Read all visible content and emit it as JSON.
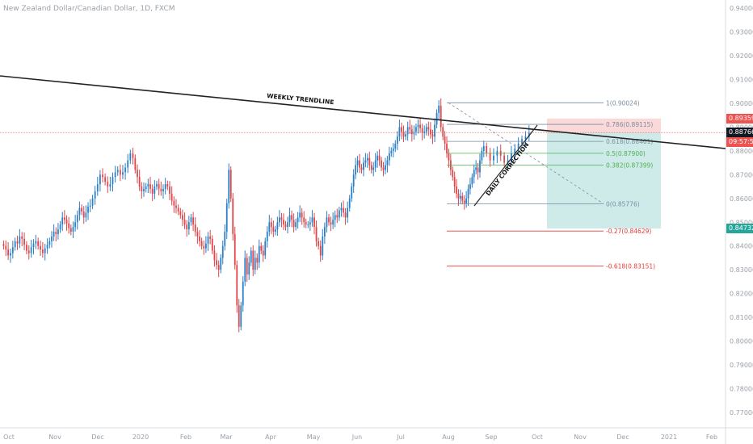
{
  "header": {
    "title": "New Zealand Dollar/Canadian Dollar, 1D, FXCM"
  },
  "price_tags": {
    "stop": "0.89359",
    "current": "0.88766",
    "countdown": "09:57:57",
    "target": "0.84732"
  },
  "colors": {
    "bull_candle": "#2a7fc8",
    "bear_candle": "#e0464a",
    "trendline": "#222222",
    "stop_tag": "#ef5350",
    "current_tag": "#131722",
    "target_tag": "#26a69a",
    "fib_upper": "#7a8da0",
    "fib_mid": "#4caf50",
    "fib_ext": "#e53935"
  },
  "annotations": {
    "weekly_trendline": "WEEKLY TRENDLINE",
    "daily_correction": "DAILY CORRECTION"
  },
  "fib_levels": [
    {
      "label": "1(0.90024)",
      "value": 0.90024
    },
    {
      "label": "0.786(0.89115)",
      "value": 0.89115
    },
    {
      "label": "0.618(0.88401)",
      "value": 0.88401
    },
    {
      "label": "0.5(0.87900)",
      "value": 0.879
    },
    {
      "label": "0.382(0.87399)",
      "value": 0.87399
    },
    {
      "label": "0(0.85776)",
      "value": 0.85776
    },
    {
      "label": "-0.27(0.84629)",
      "value": 0.84629
    },
    {
      "label": "-0.618(0.83151)",
      "value": 0.83151
    }
  ],
  "chart_data": {
    "type": "candlestick",
    "title": "New Zealand Dollar/Canadian Dollar, 1D, FXCM",
    "x_ticks": [
      "Oct",
      "Nov",
      "Dec",
      "2020",
      "Feb",
      "Mar",
      "Apr",
      "May",
      "Jun",
      "Jul",
      "Aug",
      "Sep",
      "Oct",
      "Nov",
      "Dec",
      "2021",
      "Feb"
    ],
    "y_ticks": [
      "0.94000",
      "0.93000",
      "0.92000",
      "0.91000",
      "0.90000",
      "0.89000",
      "0.88000",
      "0.87000",
      "0.86000",
      "0.85000",
      "0.84000",
      "0.83000",
      "0.82000",
      "0.81000",
      "0.80000",
      "0.79000",
      "0.78000",
      "0.77000"
    ],
    "ylim": [
      0.765,
      0.944
    ],
    "close_series": [
      {
        "month": "Oct",
        "values": [
          0.84,
          0.8385,
          0.836,
          0.837,
          0.8395,
          0.842,
          0.841,
          0.844,
          0.843,
          0.8405,
          0.838,
          0.837,
          0.8395,
          0.841,
          0.842,
          0.84,
          0.8385,
          0.837,
          0.839,
          0.8405
        ]
      },
      {
        "month": "Nov",
        "values": [
          0.842,
          0.844,
          0.846,
          0.845,
          0.847,
          0.849,
          0.852,
          0.851,
          0.8495,
          0.8475,
          0.846,
          0.848,
          0.85,
          0.853,
          0.856,
          0.8545,
          0.852,
          0.854,
          0.8565,
          0.857
        ]
      },
      {
        "month": "Dec",
        "values": [
          0.86,
          0.863,
          0.866,
          0.87,
          0.869,
          0.867,
          0.865,
          0.866,
          0.869,
          0.871,
          0.872,
          0.87,
          0.871,
          0.873,
          0.876,
          0.879,
          0.877
        ]
      },
      {
        "month": "2020",
        "values": [
          0.872,
          0.869,
          0.865,
          0.863,
          0.864,
          0.865,
          0.866,
          0.864,
          0.862,
          0.865,
          0.866,
          0.864,
          0.863,
          0.864,
          0.866,
          0.865,
          0.862,
          0.859,
          0.857,
          0.856,
          0.8545
        ]
      },
      {
        "month": "Feb",
        "values": [
          0.853,
          0.851,
          0.849,
          0.847,
          0.85,
          0.852,
          0.849,
          0.846,
          0.844,
          0.842,
          0.84,
          0.839,
          0.841,
          0.844,
          0.843,
          0.838,
          0.834,
          0.832,
          0.83
        ]
      },
      {
        "month": "Mar",
        "values": [
          0.835,
          0.84,
          0.846,
          0.858,
          0.872,
          0.86,
          0.845,
          0.832,
          0.815,
          0.806,
          0.815,
          0.825,
          0.835,
          0.828,
          0.833,
          0.838,
          0.83,
          0.835,
          0.833,
          0.84,
          0.838,
          0.836
        ]
      },
      {
        "month": "Apr",
        "values": [
          0.842,
          0.846,
          0.85,
          0.848,
          0.846,
          0.847,
          0.85,
          0.852,
          0.851,
          0.849,
          0.848,
          0.85,
          0.853,
          0.851,
          0.848,
          0.85,
          0.852,
          0.854,
          0.852,
          0.85,
          0.849
        ]
      },
      {
        "month": "May",
        "values": [
          0.849,
          0.85,
          0.852,
          0.848,
          0.842,
          0.84,
          0.836,
          0.844,
          0.848,
          0.852,
          0.85,
          0.849,
          0.851,
          0.853,
          0.852,
          0.855,
          0.856,
          0.854,
          0.852,
          0.856,
          0.86
        ]
      },
      {
        "month": "Jun",
        "values": [
          0.865,
          0.87,
          0.874,
          0.876,
          0.873,
          0.872,
          0.875,
          0.876,
          0.877,
          0.874,
          0.872,
          0.873,
          0.876,
          0.878,
          0.876,
          0.873,
          0.872,
          0.874,
          0.876,
          0.879,
          0.88,
          0.881
        ]
      },
      {
        "month": "Jul",
        "values": [
          0.883,
          0.886,
          0.89,
          0.888,
          0.886,
          0.887,
          0.89,
          0.889,
          0.887,
          0.888,
          0.89,
          0.891,
          0.8895,
          0.8875,
          0.888,
          0.89,
          0.889,
          0.887,
          0.886,
          0.891,
          0.896,
          0.899,
          0.89
        ]
      },
      {
        "month": "Aug",
        "values": [
          0.886,
          0.883,
          0.879,
          0.876,
          0.872,
          0.869,
          0.865,
          0.862,
          0.86,
          0.861,
          0.859,
          0.858,
          0.86,
          0.864,
          0.866,
          0.869,
          0.872,
          0.873,
          0.871,
          0.876,
          0.88,
          0.882
        ]
      },
      {
        "month": "Sep",
        "values": [
          0.879,
          0.876,
          0.878,
          0.88,
          0.878,
          0.875,
          0.876,
          0.879,
          0.881,
          0.883,
          0.885,
          0.886,
          0.8877
        ]
      }
    ],
    "trendlines": [
      {
        "name": "WEEKLY TRENDLINE",
        "from": {
          "date": "2019-09-20",
          "price": 0.911
        },
        "to": {
          "date": "2021-03-01",
          "price": 0.8765
        }
      },
      {
        "name": "DAILY CORRECTION",
        "from": {
          "date": "2020-08-28",
          "price": 0.8577
        },
        "to": {
          "date": "2020-09-30",
          "price": 0.888
        }
      }
    ],
    "position": {
      "entry": 0.8877,
      "stop": 0.89359,
      "target": 0.84732
    }
  }
}
